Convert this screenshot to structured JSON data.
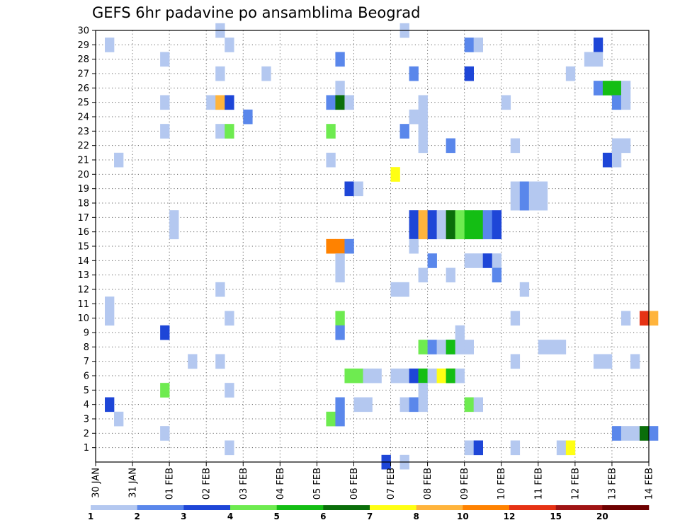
{
  "chart_data": {
    "type": "heatmap",
    "title": "GEFS 6hr padavine po ansamblima Beograd",
    "xlabel": "",
    "ylabel": "",
    "x_tick_labels": [
      "30 JAN",
      "31 JAN",
      "01 FEB",
      "02 FEB",
      "03 FEB",
      "04 FEB",
      "05 FEB",
      "06 FEB",
      "07 FEB",
      "08 FEB",
      "09 FEB",
      "10 FEB",
      "11 FEB",
      "12 FEB",
      "13 FEB",
      "14 FEB"
    ],
    "y_tick_labels": [
      "1",
      "2",
      "3",
      "4",
      "5",
      "6",
      "7",
      "8",
      "9",
      "10",
      "11",
      "12",
      "13",
      "14",
      "15",
      "16",
      "17",
      "18",
      "19",
      "20",
      "21",
      "22",
      "23",
      "24",
      "25",
      "26",
      "27",
      "28",
      "29",
      "30"
    ],
    "x_range_steps": [
      0,
      60
    ],
    "y_range": [
      0,
      30
    ],
    "grid": true,
    "legend": {
      "placement": "bottom",
      "levels": [
        "1",
        "2",
        "3",
        "4",
        "5",
        "6",
        "7",
        "8",
        "10",
        "12",
        "15",
        "20"
      ],
      "colors": [
        "#b4c8f0",
        "#5a87eb",
        "#1e46d7",
        "#6eeb50",
        "#14be14",
        "#0a6e0a",
        "#ffff14",
        "#ffb43c",
        "#ff8200",
        "#e63214",
        "#a01414",
        "#6e0000"
      ]
    },
    "cells": [
      [
        30,
        0,
        13
      ],
      [
        30,
        0,
        33
      ],
      [
        29,
        0,
        1
      ],
      [
        29,
        0,
        14
      ],
      [
        29,
        1,
        40
      ],
      [
        29,
        0,
        41
      ],
      [
        29,
        2,
        54
      ],
      [
        28,
        0,
        7
      ],
      [
        28,
        1,
        26
      ],
      [
        28,
        0,
        53
      ],
      [
        28,
        0,
        54
      ],
      [
        27,
        0,
        13
      ],
      [
        27,
        0,
        18
      ],
      [
        27,
        1,
        34
      ],
      [
        27,
        2,
        40
      ],
      [
        27,
        0,
        51
      ],
      [
        26,
        0,
        26
      ],
      [
        26,
        1,
        54
      ],
      [
        26,
        4,
        55
      ],
      [
        26,
        4,
        56
      ],
      [
        26,
        0,
        57
      ],
      [
        25,
        0,
        7
      ],
      [
        25,
        0,
        12
      ],
      [
        25,
        0,
        13
      ],
      [
        25,
        7,
        13
      ],
      [
        25,
        2,
        14
      ],
      [
        25,
        1,
        25
      ],
      [
        25,
        5,
        26
      ],
      [
        25,
        0,
        27
      ],
      [
        25,
        0,
        35
      ],
      [
        25,
        0,
        44
      ],
      [
        25,
        1,
        56
      ],
      [
        25,
        0,
        57
      ],
      [
        24,
        1,
        16
      ],
      [
        24,
        0,
        34
      ],
      [
        24,
        0,
        35
      ],
      [
        23,
        0,
        7
      ],
      [
        23,
        0,
        13
      ],
      [
        23,
        3,
        14
      ],
      [
        23,
        3,
        25
      ],
      [
        23,
        1,
        33
      ],
      [
        23,
        0,
        35
      ],
      [
        22,
        0,
        35
      ],
      [
        22,
        1,
        38
      ],
      [
        22,
        0,
        45
      ],
      [
        22,
        0,
        56
      ],
      [
        22,
        0,
        57
      ],
      [
        21,
        0,
        2
      ],
      [
        21,
        0,
        25
      ],
      [
        21,
        2,
        55
      ],
      [
        21,
        0,
        56
      ],
      [
        20,
        6,
        32
      ],
      [
        19,
        2,
        27
      ],
      [
        19,
        0,
        28
      ],
      [
        19,
        0,
        45
      ],
      [
        19,
        1,
        46
      ],
      [
        19,
        0,
        47
      ],
      [
        19,
        0,
        48
      ],
      [
        18,
        0,
        45
      ],
      [
        18,
        1,
        46
      ],
      [
        18,
        0,
        47
      ],
      [
        18,
        0,
        48
      ],
      [
        17,
        0,
        8
      ],
      [
        17,
        2,
        34
      ],
      [
        17,
        7,
        35
      ],
      [
        17,
        2,
        36
      ],
      [
        17,
        0,
        37
      ],
      [
        17,
        5,
        38
      ],
      [
        17,
        3,
        39
      ],
      [
        17,
        4,
        40
      ],
      [
        17,
        4,
        41
      ],
      [
        17,
        1,
        42
      ],
      [
        17,
        2,
        43
      ],
      [
        16,
        0,
        8
      ],
      [
        16,
        2,
        34
      ],
      [
        16,
        7,
        35
      ],
      [
        16,
        2,
        36
      ],
      [
        16,
        0,
        37
      ],
      [
        16,
        5,
        38
      ],
      [
        16,
        3,
        39
      ],
      [
        16,
        4,
        40
      ],
      [
        16,
        4,
        41
      ],
      [
        16,
        1,
        42
      ],
      [
        16,
        2,
        43
      ],
      [
        15,
        8,
        25
      ],
      [
        15,
        8,
        26
      ],
      [
        15,
        1,
        27
      ],
      [
        15,
        0,
        34
      ],
      [
        14,
        0,
        26
      ],
      [
        14,
        1,
        36
      ],
      [
        14,
        0,
        40
      ],
      [
        14,
        0,
        41
      ],
      [
        14,
        2,
        42
      ],
      [
        14,
        0,
        43
      ],
      [
        13,
        0,
        26
      ],
      [
        13,
        0,
        35
      ],
      [
        13,
        0,
        38
      ],
      [
        13,
        1,
        43
      ],
      [
        12,
        0,
        13
      ],
      [
        12,
        0,
        32
      ],
      [
        12,
        0,
        33
      ],
      [
        12,
        0,
        46
      ],
      [
        11,
        0,
        1
      ],
      [
        10,
        0,
        1
      ],
      [
        10,
        0,
        14
      ],
      [
        10,
        3,
        26
      ],
      [
        10,
        0,
        45
      ],
      [
        10,
        0,
        57
      ],
      [
        10,
        9,
        59
      ],
      [
        10,
        7,
        60
      ],
      [
        9,
        2,
        7
      ],
      [
        9,
        1,
        26
      ],
      [
        9,
        0,
        39
      ],
      [
        8,
        3,
        35
      ],
      [
        8,
        1,
        36
      ],
      [
        8,
        0,
        37
      ],
      [
        8,
        1,
        38
      ],
      [
        8,
        4,
        38
      ],
      [
        8,
        0,
        39
      ],
      [
        8,
        0,
        40
      ],
      [
        8,
        0,
        48
      ],
      [
        8,
        0,
        49
      ],
      [
        8,
        0,
        50
      ],
      [
        7,
        0,
        10
      ],
      [
        7,
        0,
        13
      ],
      [
        7,
        0,
        45
      ],
      [
        7,
        0,
        54
      ],
      [
        7,
        0,
        55
      ],
      [
        7,
        0,
        58
      ],
      [
        6,
        3,
        27
      ],
      [
        6,
        3,
        28
      ],
      [
        6,
        0,
        29
      ],
      [
        6,
        0,
        30
      ],
      [
        6,
        0,
        32
      ],
      [
        6,
        0,
        33
      ],
      [
        6,
        2,
        34
      ],
      [
        6,
        4,
        35
      ],
      [
        6,
        0,
        36
      ],
      [
        6,
        6,
        37
      ],
      [
        6,
        7,
        38
      ],
      [
        6,
        4,
        38
      ],
      [
        6,
        0,
        39
      ],
      [
        5,
        3,
        7
      ],
      [
        5,
        0,
        14
      ],
      [
        5,
        0,
        35
      ],
      [
        4,
        2,
        1
      ],
      [
        4,
        1,
        26
      ],
      [
        4,
        0,
        28
      ],
      [
        4,
        0,
        29
      ],
      [
        4,
        0,
        33
      ],
      [
        4,
        1,
        34
      ],
      [
        4,
        0,
        35
      ],
      [
        4,
        3,
        40
      ],
      [
        4,
        0,
        41
      ],
      [
        3,
        0,
        2
      ],
      [
        3,
        3,
        25
      ],
      [
        3,
        1,
        26
      ],
      [
        2,
        0,
        7
      ],
      [
        2,
        1,
        56
      ],
      [
        2,
        0,
        57
      ],
      [
        2,
        0,
        58
      ],
      [
        2,
        5,
        59
      ],
      [
        2,
        1,
        60
      ],
      [
        1,
        0,
        14
      ],
      [
        1,
        0,
        40
      ],
      [
        1,
        2,
        41
      ],
      [
        1,
        0,
        45
      ],
      [
        1,
        0,
        50
      ],
      [
        1,
        6,
        51
      ],
      [
        0,
        2,
        31
      ],
      [
        0,
        0,
        33
      ]
    ]
  }
}
